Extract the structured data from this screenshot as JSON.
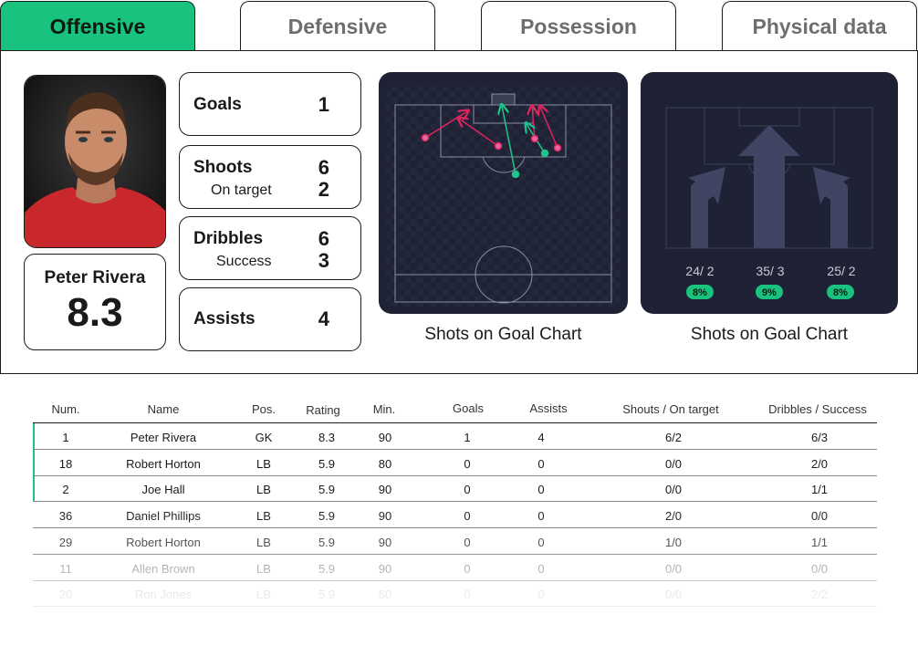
{
  "tabs": [
    {
      "label": "Offensive",
      "active": true
    },
    {
      "label": "Defensive",
      "active": false
    },
    {
      "label": "Possession",
      "active": false
    },
    {
      "label": "Physical data",
      "active": false
    }
  ],
  "player": {
    "name": "Peter Rivera",
    "rating": "8.3"
  },
  "stats": {
    "goals": {
      "label": "Goals",
      "value": "1"
    },
    "shoots": {
      "label": "Shoots",
      "value": "6",
      "sub_label": "On target",
      "sub_value": "2"
    },
    "dribbles": {
      "label": "Dribbles",
      "value": "6",
      "sub_label": "Success",
      "sub_value": "3"
    },
    "assists": {
      "label": "Assists",
      "value": "4"
    }
  },
  "chart1": {
    "caption": "Shots on Goal Chart"
  },
  "chart2": {
    "caption": "Shots on Goal Chart",
    "zones": [
      {
        "label": "24/ 2",
        "pct": "8%"
      },
      {
        "label": "35/ 3",
        "pct": "9%"
      },
      {
        "label": "25/ 2",
        "pct": "8%"
      }
    ]
  },
  "colors": {
    "accent": "#19c37d",
    "pitch": "#1e2234",
    "shot_miss": "#e0245e",
    "shot_goal": "#21c48d"
  },
  "table": {
    "headers": [
      "Num.",
      "Name",
      "Pos.",
      "Rating",
      "Min.",
      "Goals",
      "Assists",
      "Shouts / On target",
      "Dribbles / Success"
    ],
    "rows": [
      [
        "1",
        "Peter Rivera",
        "GK",
        "8.3",
        "90",
        "1",
        "4",
        "6/2",
        "6/3"
      ],
      [
        "18",
        "Robert Horton",
        "LB",
        "5.9",
        "80",
        "0",
        "0",
        "0/0",
        "2/0"
      ],
      [
        "2",
        "Joe Hall",
        "LB",
        "5.9",
        "90",
        "0",
        "0",
        "0/0",
        "1/1"
      ],
      [
        "36",
        "Daniel Phillips",
        "LB",
        "5.9",
        "90",
        "0",
        "0",
        "2/0",
        "0/0"
      ],
      [
        "29",
        "Robert Horton",
        "LB",
        "5.9",
        "90",
        "0",
        "0",
        "1/0",
        "1/1"
      ],
      [
        "11",
        "Allen Brown",
        "LB",
        "5.9",
        "90",
        "0",
        "0",
        "0/0",
        "0/0"
      ],
      [
        "20",
        "Ron Jones",
        "LB",
        "5.9",
        "60",
        "0",
        "0",
        "0/0",
        "2/2"
      ]
    ]
  }
}
